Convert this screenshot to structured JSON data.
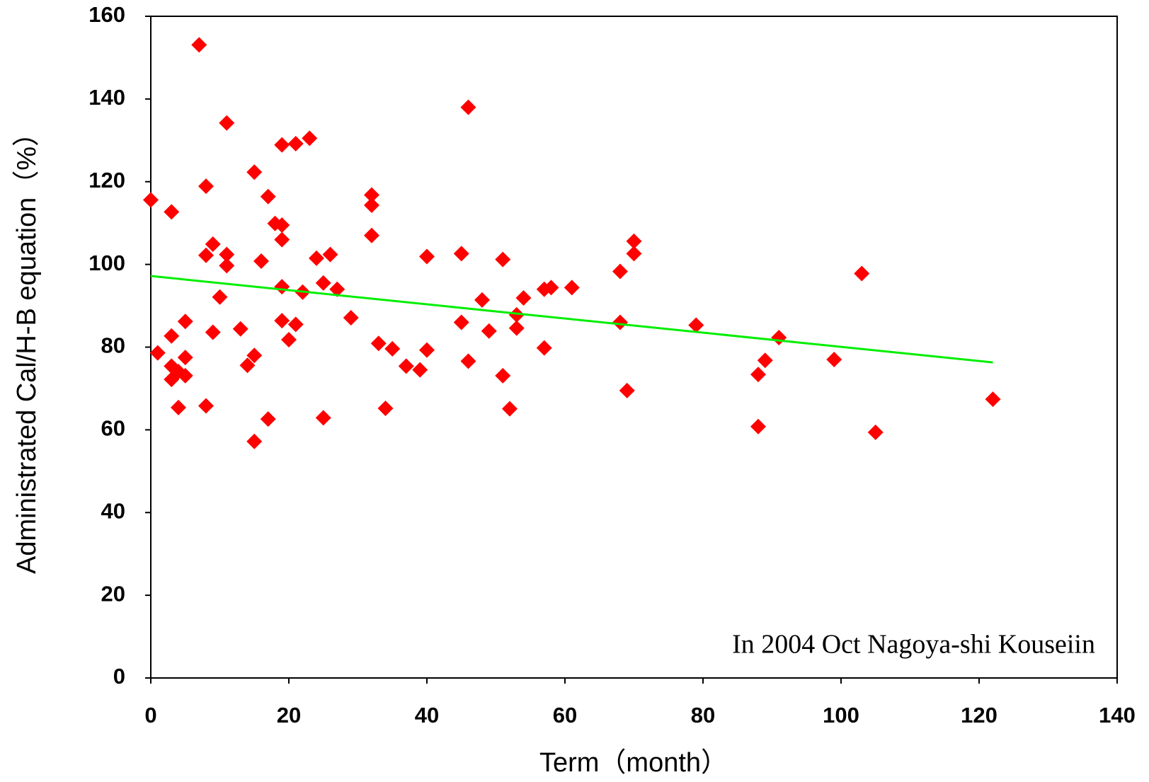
{
  "chart_data": {
    "type": "scatter",
    "xlabel": "Term（month）",
    "ylabel": "Administrated Cal/H-B equation（%）",
    "annotation": "In 2004 Oct Nagoya-shi  Kouseiin",
    "xlim": [
      0,
      140
    ],
    "xticks": [
      0,
      20,
      40,
      60,
      80,
      100,
      120,
      140
    ],
    "ylim": [
      0,
      160
    ],
    "yticks": [
      0,
      20,
      40,
      60,
      80,
      100,
      120,
      140,
      160
    ],
    "color": "#ff0000",
    "x": [
      0,
      1,
      3,
      3,
      3,
      3,
      4,
      4,
      5,
      5,
      5,
      7,
      8,
      8,
      8,
      9,
      9,
      10,
      11,
      11,
      11,
      13,
      14,
      15,
      15,
      15,
      16,
      17,
      17,
      18,
      19,
      19,
      19,
      19,
      19,
      20,
      21,
      21,
      22,
      23,
      24,
      25,
      25,
      26,
      27,
      29,
      32,
      32,
      32,
      33,
      34,
      35,
      37,
      39,
      40,
      40,
      45,
      45,
      46,
      46,
      48,
      49,
      51,
      51,
      52,
      53,
      53,
      54,
      57,
      57,
      58,
      61,
      68,
      68,
      69,
      70,
      70,
      79,
      88,
      88,
      89,
      91,
      99,
      103,
      105,
      122
    ],
    "values": [
      115.6,
      78.6,
      112.7,
      82.7,
      75.4,
      72.2,
      74.1,
      65.4,
      86.2,
      77.5,
      73.1,
      153.1,
      118.9,
      102.2,
      65.8,
      104.9,
      83.6,
      92.1,
      134.2,
      102.4,
      99.7,
      84.4,
      75.6,
      122.3,
      78,
      57.2,
      100.8,
      116.4,
      62.6,
      109.9,
      128.9,
      109.5,
      106,
      94.6,
      86.4,
      81.8,
      129.2,
      85.5,
      93.3,
      130.5,
      101.5,
      95.5,
      62.9,
      102.4,
      94,
      87.1,
      116.8,
      114.3,
      107,
      80.9,
      65.2,
      79.6,
      75.4,
      74.5,
      101.9,
      79.3,
      102.6,
      86,
      138,
      76.6,
      91.4,
      83.9,
      101.2,
      73.1,
      65.1,
      87.8,
      84.6,
      91.9,
      79.8,
      94,
      94.4,
      94.4,
      98.3,
      86,
      69.5,
      105.6,
      102.6,
      85.3,
      73.4,
      60.8,
      76.8,
      82.3,
      77,
      97.8,
      59.4,
      67.4
    ],
    "trendline": {
      "color": "#00ee00",
      "x": [
        0,
        122
      ],
      "values": [
        97.2,
        76.3
      ]
    }
  }
}
